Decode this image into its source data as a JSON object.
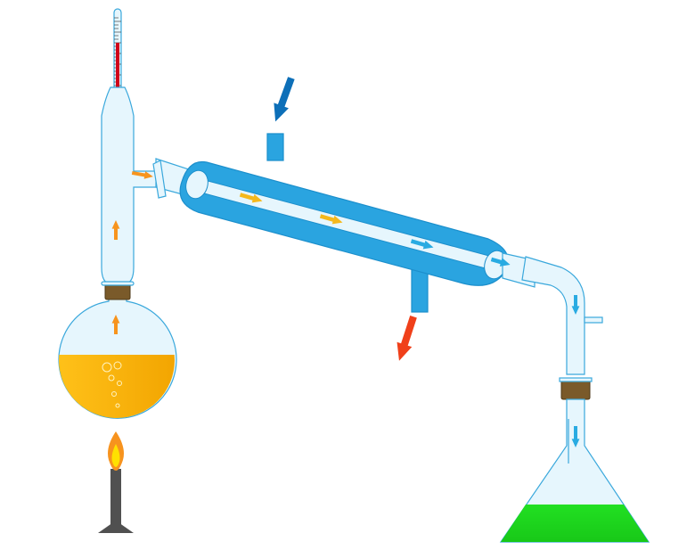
{
  "diagram": {
    "labels": [],
    "colors": {
      "glass_fill": "#e6f6fd",
      "glass_stroke": "#3aa8dc",
      "jacket": "#2aa4e0",
      "jacket_dark": "#1c8fcc",
      "liquid_flask": "#ffc21a",
      "liquid_flask_dark": "#f2a400",
      "distillate": "#22e022",
      "distillate_dark": "#18c818",
      "cork": "#7a5a2a",
      "burner": "#505050",
      "flame_outer": "#f7931e",
      "flame_inner": "#ffe100",
      "vapor_hot": "#f7941d",
      "vapor_warm": "#f5b81c",
      "vapor_cool": "#29abe2",
      "water_in": "#0d6fb8",
      "water_out": "#f0401a",
      "thermo_bulb": "#d0021b"
    },
    "components": [
      {
        "name": "thermometer",
        "icon": "thermometer-icon"
      },
      {
        "name": "distillation-flask",
        "icon": "round-bottom-flask-icon"
      },
      {
        "name": "condenser",
        "icon": "liebig-condenser-icon"
      },
      {
        "name": "receiving-flask",
        "icon": "erlenmeyer-flask-icon"
      },
      {
        "name": "bunsen-burner",
        "icon": "burner-flame-icon"
      }
    ],
    "flows": [
      {
        "name": "vapor-flow",
        "icon": "arrow-icon"
      },
      {
        "name": "cooling-water-inlet",
        "icon": "down-arrow-icon"
      },
      {
        "name": "cooling-water-outlet",
        "icon": "down-arrow-icon"
      }
    ]
  }
}
